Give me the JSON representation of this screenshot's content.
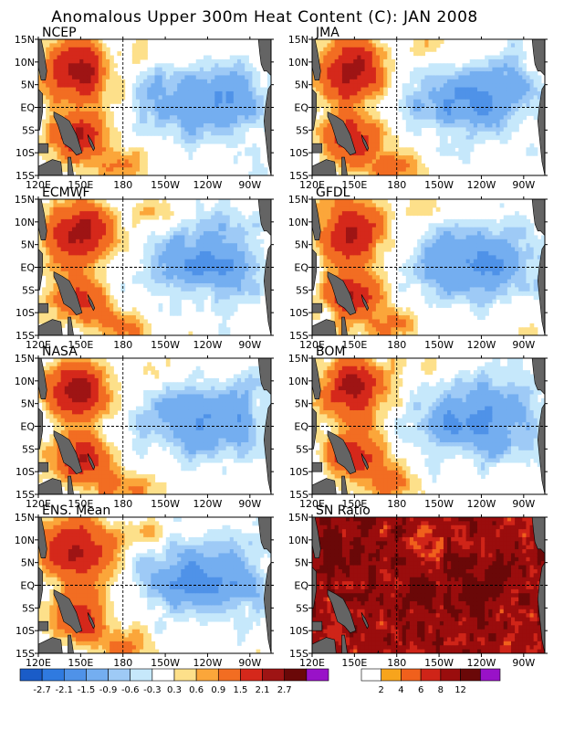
{
  "title": "Anomalous Upper 300m Heat Content (C): JAN 2008",
  "panels": [
    {
      "label": "NCEP",
      "kind": "anomaly"
    },
    {
      "label": "JMA",
      "kind": "anomaly"
    },
    {
      "label": "ECMWF",
      "kind": "anomaly"
    },
    {
      "label": "GFDL",
      "kind": "anomaly"
    },
    {
      "label": "NASA",
      "kind": "anomaly"
    },
    {
      "label": "BOM",
      "kind": "anomaly"
    },
    {
      "label": "ENS. Mean",
      "kind": "anomaly"
    },
    {
      "label": "SN Ratio",
      "kind": "snratio"
    }
  ],
  "axes": {
    "lon_labels": [
      "120E",
      "150E",
      "180",
      "150W",
      "120W",
      "90W"
    ],
    "lat_labels": [
      "15N",
      "10N",
      "5N",
      "EQ",
      "5S",
      "10S",
      "15S"
    ],
    "lon_range_deg": [
      120,
      285
    ],
    "lat_range_deg": [
      -15,
      15
    ],
    "reference_lines": [
      "EQ",
      "180"
    ]
  },
  "colorbars": {
    "anomaly": {
      "labels": [
        "-2.7",
        "-2.1",
        "-1.5",
        "-0.9",
        "-0.6",
        "-0.3",
        "0.3",
        "0.6",
        "0.9",
        "1.5",
        "2.1",
        "2.7"
      ],
      "colors": [
        "#1a5cc8",
        "#2f7ae0",
        "#4f92e8",
        "#74aef0",
        "#9ecaf6",
        "#c6e8fb",
        "#ffffff",
        "#fde08a",
        "#fba63a",
        "#f26d22",
        "#d5281b",
        "#9e1414",
        "#6a0808",
        "#9912c8"
      ]
    },
    "snratio": {
      "labels": [
        "2",
        "4",
        "6",
        "8",
        "12"
      ],
      "colors": [
        "#ffffff",
        "#f7a41c",
        "#f0601c",
        "#cf2418",
        "#9a0d0d",
        "#6a0808",
        "#9912c8"
      ]
    }
  },
  "land_color": "#646464"
}
